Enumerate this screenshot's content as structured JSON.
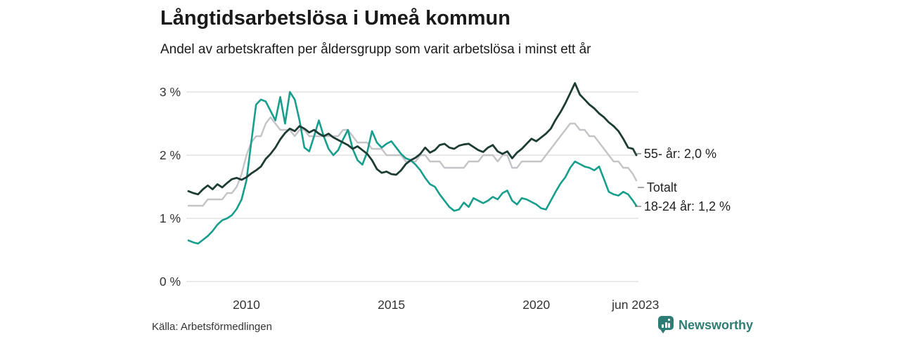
{
  "header": {
    "title": "Långtidsarbetslösa i Umeå kommun",
    "subtitle": "Andel av arbetskraften per åldersgrupp som varit arbetslösa i minst ett år"
  },
  "footer": {
    "source": "Källa: Arbetsförmedlingen",
    "brand": "Newsworthy",
    "brand_icon": "newsworthy-chart-bubble-logo",
    "brand_color": "#2e7d75"
  },
  "colors": {
    "background": "#ffffff",
    "grid": "#e2e2e2",
    "axis_text": "#333333",
    "title_text": "#1a1a1a",
    "series_total": "#c4c4c8",
    "series_young": "#189e8c",
    "series_old": "#1d3c34"
  },
  "chart_data": {
    "type": "line",
    "title": "Långtidsarbetslösa i Umeå kommun",
    "subtitle": "Andel av arbetskraften per åldersgrupp som varit arbetslösa i minst ett år",
    "unit": "%",
    "grid": "horizontal-only",
    "legend_position": "right-end-labels",
    "x_min": 2008.0,
    "x_max": 2023.45,
    "x_start": 2008.0,
    "x_step_years": 0.1666667,
    "ylim": [
      0,
      3.3
    ],
    "y_ticks": [
      {
        "v": 0,
        "label": "0 %"
      },
      {
        "v": 1,
        "label": "1 %"
      },
      {
        "v": 2,
        "label": "2 %"
      },
      {
        "v": 3,
        "label": "3 %"
      }
    ],
    "x_ticks": [
      {
        "v": 2010,
        "label": "2010"
      },
      {
        "v": 2015,
        "label": "2015"
      },
      {
        "v": 2020,
        "label": "2020"
      },
      {
        "v": 2023.42,
        "label": "jun 2023"
      }
    ],
    "series": [
      {
        "name": "Totalt",
        "end_label": "Totalt",
        "color": "#c4c4c8",
        "stroke_width": 2.4,
        "values": [
          1.2,
          1.2,
          1.2,
          1.2,
          1.3,
          1.3,
          1.3,
          1.3,
          1.4,
          1.4,
          1.5,
          1.7,
          2.0,
          2.2,
          2.3,
          2.3,
          2.5,
          2.6,
          2.5,
          2.4,
          2.4,
          2.4,
          2.3,
          2.4,
          2.4,
          2.3,
          2.3,
          2.3,
          2.3,
          2.3,
          2.3,
          2.3,
          2.4,
          2.4,
          2.3,
          2.2,
          2.2,
          2.2,
          2.1,
          2.1,
          2.1,
          2.0,
          2.0,
          2.0,
          2.0,
          1.9,
          1.9,
          1.9,
          2.0,
          2.0,
          1.9,
          1.9,
          1.9,
          1.8,
          1.8,
          1.8,
          1.8,
          1.8,
          1.9,
          1.9,
          1.9,
          2.0,
          2.0,
          2.0,
          1.9,
          2.0,
          2.0,
          1.8,
          1.8,
          1.9,
          1.9,
          1.9,
          1.9,
          1.9,
          2.0,
          2.1,
          2.2,
          2.3,
          2.4,
          2.5,
          2.5,
          2.4,
          2.4,
          2.3,
          2.3,
          2.2,
          2.1,
          2.0,
          1.9,
          1.9,
          1.8,
          1.8,
          1.7,
          1.6
        ]
      },
      {
        "name": "18-24 år",
        "end_label": "18-24 år: 1,2 %",
        "end_value": "1,2 %",
        "color": "#189e8c",
        "stroke_width": 2.6,
        "values": [
          0.65,
          0.62,
          0.6,
          0.66,
          0.72,
          0.8,
          0.9,
          0.97,
          1.0,
          1.05,
          1.15,
          1.3,
          1.6,
          2.2,
          2.8,
          2.88,
          2.85,
          2.7,
          2.55,
          2.92,
          2.5,
          3.0,
          2.88,
          2.55,
          2.12,
          2.06,
          2.3,
          2.55,
          2.3,
          2.1,
          2.0,
          2.08,
          2.25,
          2.4,
          2.1,
          1.92,
          1.85,
          2.05,
          2.38,
          2.2,
          2.12,
          2.18,
          2.22,
          2.12,
          2.02,
          1.95,
          1.92,
          1.85,
          1.76,
          1.64,
          1.54,
          1.5,
          1.38,
          1.28,
          1.18,
          1.12,
          1.14,
          1.25,
          1.18,
          1.32,
          1.28,
          1.24,
          1.28,
          1.34,
          1.3,
          1.4,
          1.44,
          1.28,
          1.22,
          1.32,
          1.3,
          1.26,
          1.22,
          1.16,
          1.14,
          1.28,
          1.42,
          1.55,
          1.65,
          1.8,
          1.9,
          1.86,
          1.82,
          1.8,
          1.76,
          1.82,
          1.62,
          1.42,
          1.38,
          1.36,
          1.42,
          1.38,
          1.28,
          1.2
        ]
      },
      {
        "name": "55- år",
        "end_label": "55- år: 2,0 %",
        "end_value": "2,0 %",
        "color": "#1d3c34",
        "stroke_width": 2.8,
        "values": [
          1.43,
          1.4,
          1.38,
          1.46,
          1.52,
          1.46,
          1.54,
          1.49,
          1.56,
          1.62,
          1.64,
          1.61,
          1.65,
          1.71,
          1.76,
          1.82,
          1.94,
          2.02,
          2.12,
          2.25,
          2.35,
          2.42,
          2.38,
          2.46,
          2.42,
          2.36,
          2.4,
          2.34,
          2.3,
          2.34,
          2.28,
          2.24,
          2.2,
          2.16,
          2.1,
          2.14,
          2.08,
          2.02,
          1.92,
          1.78,
          1.72,
          1.74,
          1.7,
          1.69,
          1.76,
          1.86,
          1.92,
          1.96,
          2.02,
          2.12,
          2.04,
          2.08,
          2.16,
          2.18,
          2.12,
          2.1,
          2.15,
          2.17,
          2.18,
          2.13,
          2.08,
          2.05,
          2.12,
          2.16,
          2.06,
          2.02,
          2.06,
          1.95,
          2.04,
          2.1,
          2.18,
          2.26,
          2.22,
          2.28,
          2.34,
          2.42,
          2.56,
          2.68,
          2.82,
          2.98,
          3.14,
          2.96,
          2.88,
          2.8,
          2.74,
          2.66,
          2.6,
          2.52,
          2.46,
          2.38,
          2.26,
          2.12,
          2.1,
          2.0
        ]
      }
    ]
  },
  "end_labels": {
    "old": "55- år: 2,0 %",
    "total": "Totalt",
    "young": "18-24 år: 1,2 %"
  }
}
